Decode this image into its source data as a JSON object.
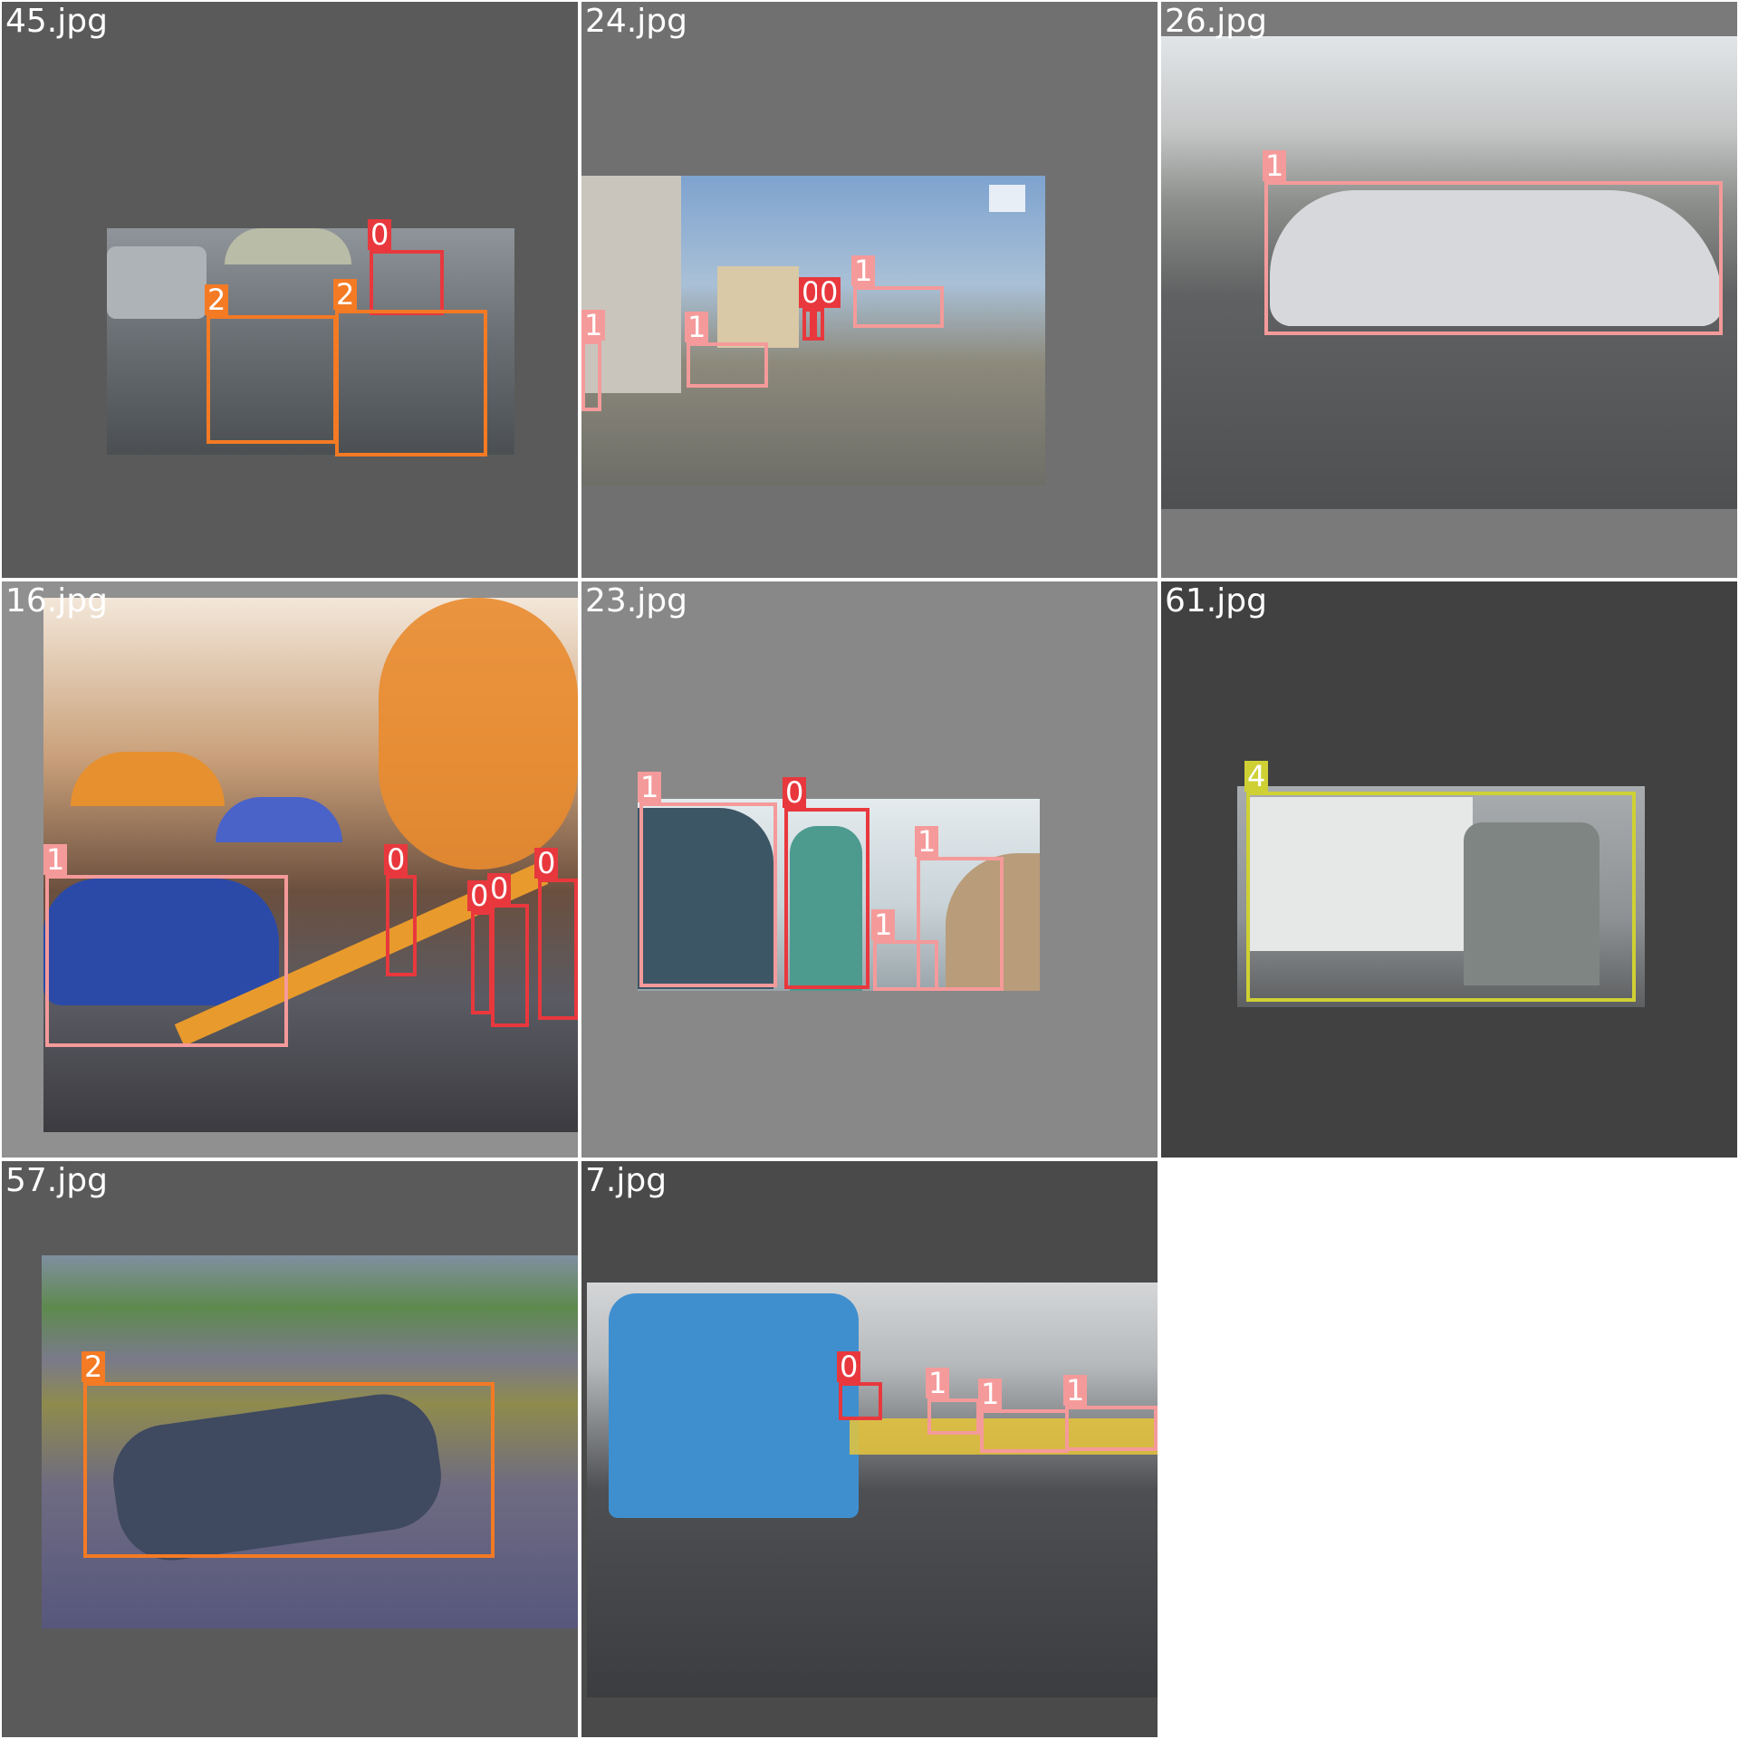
{
  "tiles": [
    {
      "filename": "45.jpg"
    },
    {
      "filename": "24.jpg"
    },
    {
      "filename": "26.jpg"
    },
    {
      "filename": "16.jpg"
    },
    {
      "filename": "23.jpg"
    },
    {
      "filename": "61.jpg"
    },
    {
      "filename": "57.jpg"
    },
    {
      "filename": "7.jpg"
    }
  ],
  "classes": {
    "0": {
      "label": "0",
      "color": "#e8383d"
    },
    "1": {
      "label": "1",
      "color": "#f59a9a"
    },
    "2": {
      "label": "2",
      "color": "#f47a24"
    },
    "4": {
      "label": "4",
      "color": "#cfd034"
    }
  }
}
